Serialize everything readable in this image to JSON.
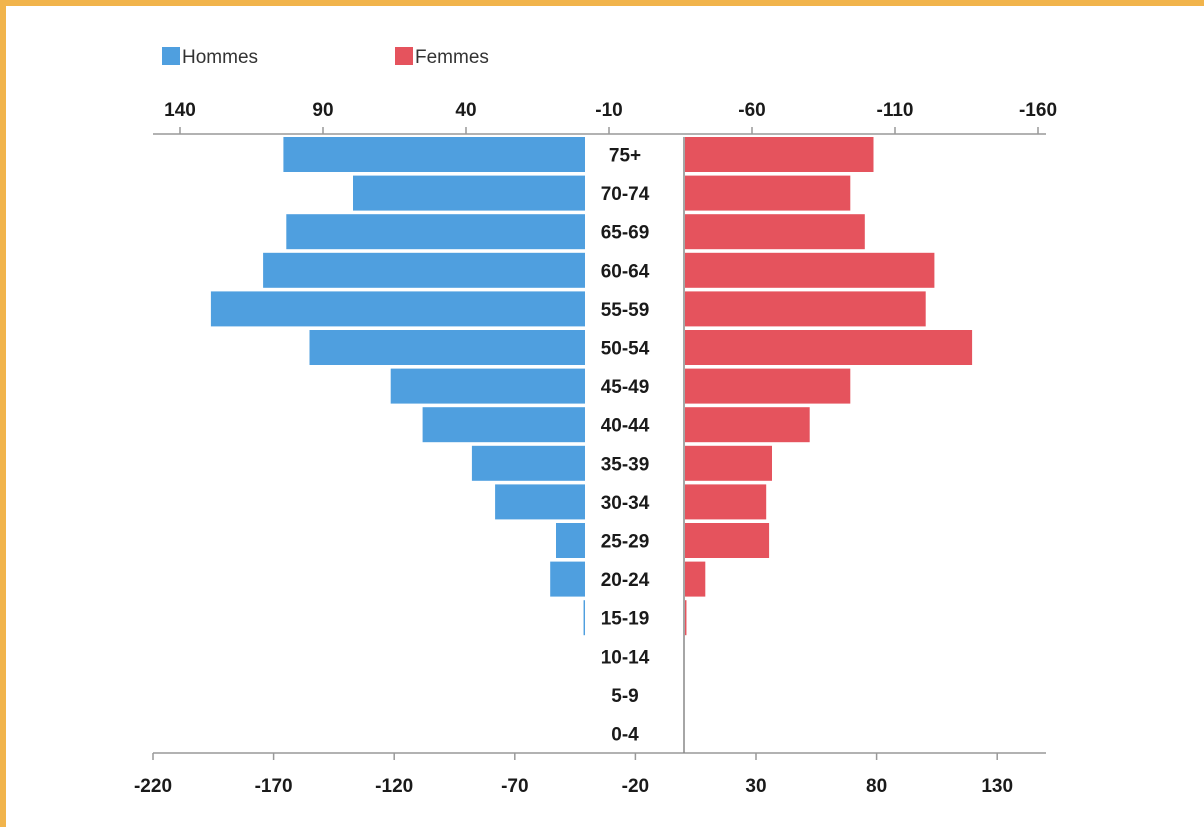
{
  "chart_data": {
    "type": "bar",
    "orientation": "horizontal",
    "subtype": "population-pyramid",
    "title": "",
    "legend_position": "top-left",
    "grid": false,
    "categories": [
      "75+",
      "70-74",
      "65-69",
      "60-64",
      "55-59",
      "50-54",
      "45-49",
      "40-44",
      "35-39",
      "30-34",
      "25-29",
      "20-24",
      "15-19",
      "10-14",
      "5-9",
      "0-4"
    ],
    "series": [
      {
        "name": "Hommes",
        "color": "#4f9fdf",
        "values": [
          104,
          80,
          103,
          111,
          129,
          95,
          67,
          56,
          39,
          31,
          10,
          12,
          0.5,
          0,
          0,
          0
        ]
      },
      {
        "name": "Femmes",
        "color": "#e5535d",
        "values": [
          65,
          57,
          62,
          86,
          83,
          99,
          57,
          43,
          30,
          28,
          29,
          7,
          0.5,
          0,
          0,
          0
        ]
      }
    ],
    "top_axis": {
      "ticks": [
        "140",
        "90",
        "40",
        "-10",
        "-60",
        "-110",
        "-160"
      ]
    },
    "bottom_axis": {
      "ticks": [
        "-220",
        "-170",
        "-120",
        "-70",
        "-20",
        "30",
        "80",
        "130"
      ]
    }
  }
}
